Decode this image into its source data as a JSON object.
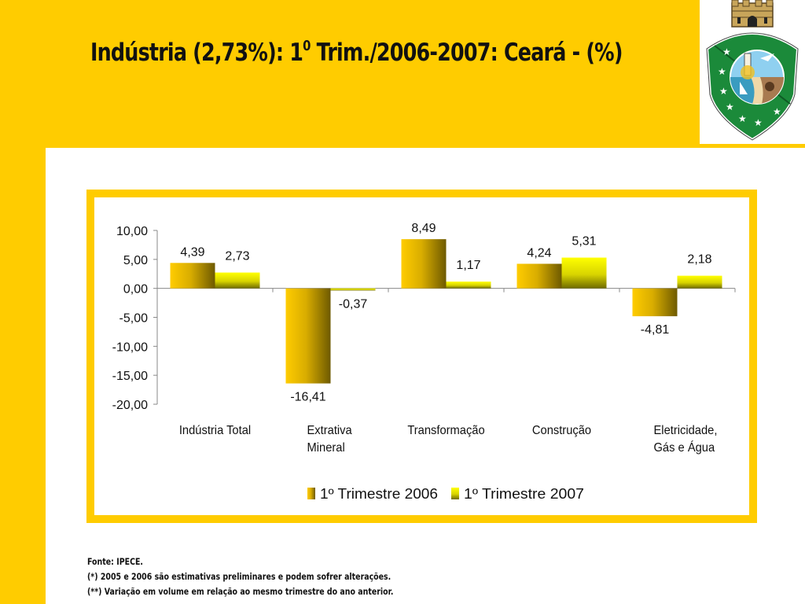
{
  "slide": {
    "title_main": "Indústria (2,73%): 1",
    "title_sup": "0",
    "title_rest": " Trim./2006-2007: Ceará - (%)",
    "footnotes": [
      "Fonte: IPECE.",
      "(*) 2005 e 2006 são estimativas preliminares e podem sofrer alterações.",
      "(**) Variação em volume em relação ao mesmo trimestre do ano anterior."
    ],
    "colors": {
      "background_accent": "#ffcc00",
      "series_2006": "#e6b800",
      "series_2007": "#f2f200"
    },
    "logo_name": "ceara-coat-of-arms"
  },
  "chart_data": {
    "type": "bar",
    "title": "Indústria (2,73%): 1º Trim./2006-2007: Ceará - (%)",
    "categories": [
      [
        "Indústria Total"
      ],
      [
        "Extrativa",
        "Mineral"
      ],
      [
        "Transformação"
      ],
      [
        "Construção"
      ],
      [
        "Eletricidade,",
        "Gás e Água"
      ]
    ],
    "series": [
      {
        "name": "1º Trimestre 2006",
        "values": [
          4.39,
          -16.41,
          8.49,
          4.24,
          -4.81
        ],
        "labels": [
          "4,39",
          "-16,41",
          "8,49",
          "4,24",
          "-4,81"
        ]
      },
      {
        "name": "1º Trimestre 2007",
        "values": [
          2.73,
          -0.37,
          1.17,
          5.31,
          2.18
        ],
        "labels": [
          "2,73",
          "-0,37",
          "1,17",
          "5,31",
          "2,18"
        ]
      }
    ],
    "yticks": [
      10,
      5,
      0,
      -5,
      -10,
      -15,
      -20
    ],
    "ytick_labels": [
      "10,00",
      "5,00",
      "0,00",
      "-5,00",
      "-10,00",
      "-15,00",
      "-20,00"
    ],
    "ylim": [
      -20,
      10
    ],
    "xlabel": "",
    "ylabel": "",
    "grid": false,
    "legend_position": "bottom"
  }
}
